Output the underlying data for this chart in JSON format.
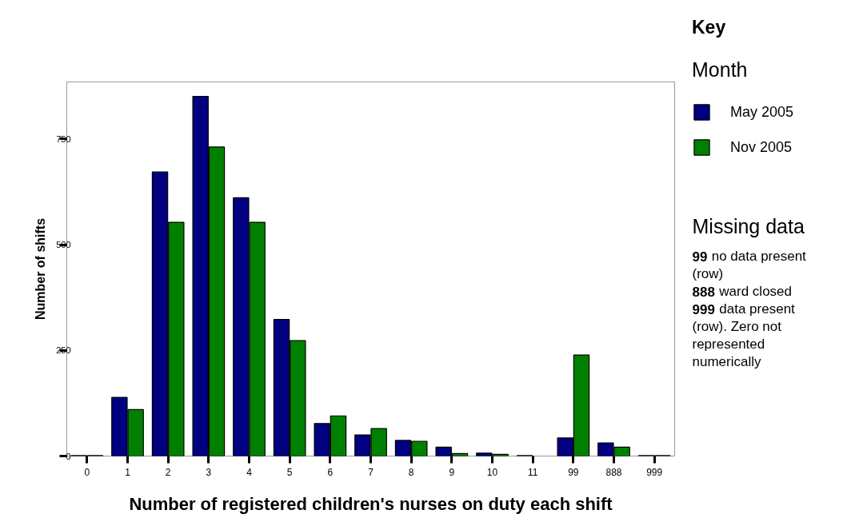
{
  "chart_data": {
    "type": "bar",
    "xlabel": "Number of registered children's nurses on duty each shift",
    "ylabel": "Number of shifts",
    "categories": [
      "0",
      "1",
      "2",
      "3",
      "4",
      "5",
      "6",
      "7",
      "8",
      "9",
      "10",
      "11",
      "99",
      "888",
      "999"
    ],
    "series": [
      {
        "name": "May 2005",
        "color": "#000080",
        "values": [
          1,
          139,
          672,
          851,
          611,
          323,
          77,
          50,
          37,
          21,
          7,
          1,
          43,
          31,
          1
        ]
      },
      {
        "name": "Nov 2005",
        "color": "#008000",
        "values": [
          1,
          110,
          553,
          731,
          553,
          273,
          95,
          65,
          35,
          6,
          4,
          null,
          239,
          21,
          1
        ]
      }
    ],
    "ylim": [
      0,
      885
    ],
    "yticks": [
      0,
      250,
      500,
      750
    ],
    "legend": "right",
    "legend_title": "Month",
    "annotations": [
      "Key",
      "Missing data",
      "99 no data present (row)",
      "888 ward closed",
      "999 data present (row). Zero not represented numerically"
    ]
  }
}
